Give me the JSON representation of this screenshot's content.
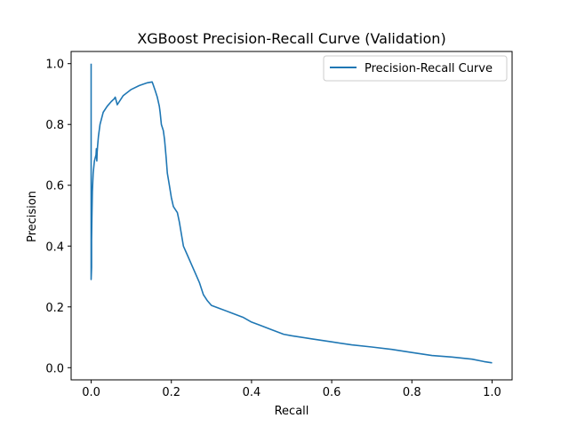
{
  "chart_data": {
    "type": "line",
    "title": "XGBoost Precision-Recall Curve (Validation)",
    "xlabel": "Recall",
    "ylabel": "Precision",
    "xlim": [
      -0.05,
      1.05
    ],
    "ylim": [
      -0.04,
      1.04
    ],
    "xticks": [
      0.0,
      0.2,
      0.4,
      0.6,
      0.8,
      1.0
    ],
    "xtick_labels": [
      "0.0",
      "0.2",
      "0.4",
      "0.6",
      "0.8",
      "1.0"
    ],
    "yticks": [
      0.0,
      0.2,
      0.4,
      0.6,
      0.8,
      1.0
    ],
    "ytick_labels": [
      "0.0",
      "0.2",
      "0.4",
      "0.6",
      "0.8",
      "1.0"
    ],
    "grid": false,
    "legend_position": "top-right",
    "series": [
      {
        "name": "Precision-Recall Curve",
        "color": "#1f77b4",
        "x": [
          0.0,
          0.0,
          0.001,
          0.001,
          0.002,
          0.003,
          0.005,
          0.008,
          0.012,
          0.013,
          0.014,
          0.015,
          0.016,
          0.018,
          0.022,
          0.03,
          0.04,
          0.05,
          0.058,
          0.06,
          0.065,
          0.08,
          0.1,
          0.12,
          0.14,
          0.152,
          0.155,
          0.16,
          0.165,
          0.17,
          0.172,
          0.175,
          0.18,
          0.183,
          0.185,
          0.187,
          0.19,
          0.195,
          0.2,
          0.205,
          0.21,
          0.215,
          0.22,
          0.225,
          0.23,
          0.24,
          0.25,
          0.26,
          0.27,
          0.28,
          0.29,
          0.3,
          0.32,
          0.35,
          0.38,
          0.4,
          0.42,
          0.45,
          0.48,
          0.5,
          0.55,
          0.6,
          0.65,
          0.7,
          0.75,
          0.8,
          0.85,
          0.9,
          0.95,
          0.98,
          1.0
        ],
        "y": [
          1.0,
          0.29,
          0.33,
          0.42,
          0.5,
          0.58,
          0.64,
          0.68,
          0.7,
          0.72,
          0.68,
          0.71,
          0.73,
          0.76,
          0.8,
          0.84,
          0.86,
          0.875,
          0.885,
          0.89,
          0.865,
          0.895,
          0.915,
          0.928,
          0.937,
          0.94,
          0.93,
          0.91,
          0.89,
          0.86,
          0.84,
          0.8,
          0.78,
          0.75,
          0.72,
          0.69,
          0.64,
          0.6,
          0.56,
          0.53,
          0.52,
          0.51,
          0.48,
          0.44,
          0.4,
          0.37,
          0.34,
          0.31,
          0.28,
          0.24,
          0.22,
          0.205,
          0.195,
          0.18,
          0.165,
          0.15,
          0.14,
          0.125,
          0.11,
          0.105,
          0.095,
          0.085,
          0.075,
          0.068,
          0.06,
          0.05,
          0.04,
          0.035,
          0.028,
          0.02,
          0.016
        ]
      }
    ]
  }
}
